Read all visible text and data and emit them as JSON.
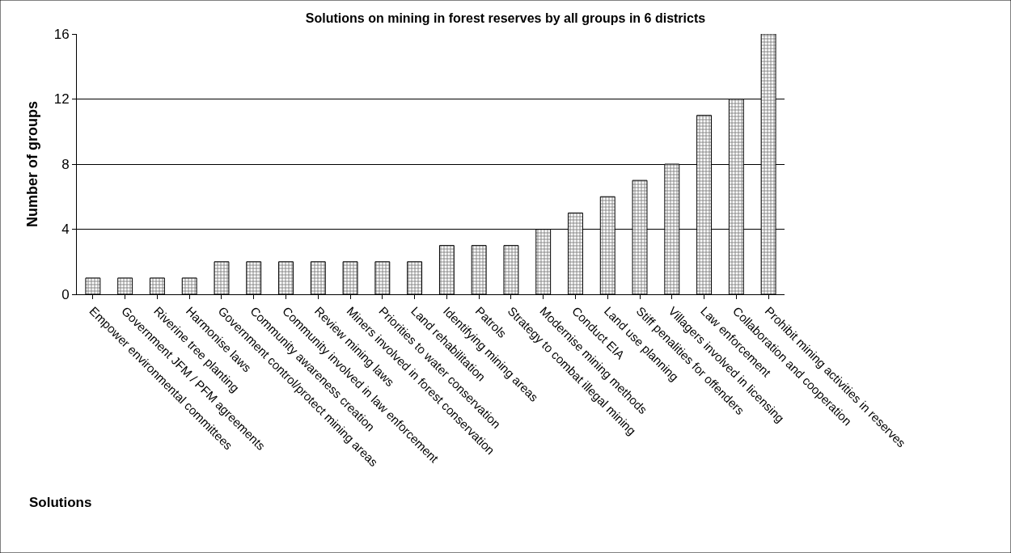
{
  "chart_data": {
    "type": "bar",
    "title": "Solutions on mining in forest reserves by all groups in 6 districts",
    "xlabel": "Solutions",
    "ylabel": "Number of groups",
    "categories": [
      "Empower environmental committees",
      "Government JFM / PFM agreements",
      "Riverine tree planting",
      "Harmonise laws",
      "Government control/protect mining areas",
      "Community awareness creation",
      "Community involved in law enforcement",
      "Review mining laws",
      "Miners involved in forest conservation",
      "Priorities to water conservation",
      "Land rehabilitation",
      "Identifying mining areas",
      "Patrols",
      "Strategy to combat illegal mining",
      "Modernise mining methods",
      "Conduct EIA",
      "Land use planning",
      "Stiff penalities for offenders",
      "Villagers involved in licensing",
      "Law enforcement",
      "Collaboration and cooperation",
      "Prohibit mining activities in reserves"
    ],
    "values": [
      1,
      1,
      1,
      1,
      2,
      2,
      2,
      2,
      2,
      2,
      2,
      3,
      3,
      3,
      4,
      5,
      6,
      7,
      8,
      11,
      12,
      16
    ],
    "color": "#000000",
    "ylim": [
      0,
      16
    ],
    "yticks": [
      0,
      4,
      8,
      12,
      16
    ],
    "grid": "y"
  }
}
